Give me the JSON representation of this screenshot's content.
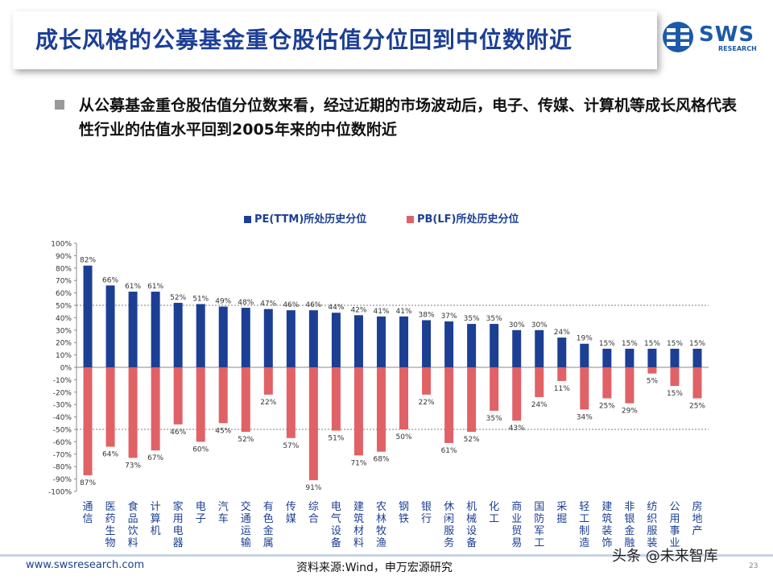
{
  "title": "成长风格的公募基金重仓股估值分位回到中位数附近",
  "logo": {
    "text": "SWS",
    "sub": "RESEARCH"
  },
  "bullet": "从公募基金重仓股估值分位数来看，经过近期的市场波动后，电子、传媒、计算机等成长风格代表性行业的估值水平回到2005年来的中位数附近",
  "footer": {
    "url": "www.swsresearch.com",
    "source": "资料来源:Wind，申万宏源研究",
    "watermark": "头条 @未来智库",
    "page": "23"
  },
  "colors": {
    "pe": "#1c3f94",
    "pb": "#e06266",
    "title": "#1c3f94"
  },
  "chart_data": {
    "type": "bar",
    "legend_position": "top",
    "categories": [
      "通信",
      "医药生物",
      "食品饮料",
      "计算机",
      "家用电器",
      "电子",
      "汽车",
      "交通运输",
      "有色金属",
      "传媒",
      "综合",
      "电气设备",
      "建筑材料",
      "农林牧渔",
      "钢铁",
      "银行",
      "休闲服务",
      "机械设备",
      "化工",
      "商业贸易",
      "国防军工",
      "采掘",
      "轻工制造",
      "建筑装饰",
      "非银金融",
      "纺织服装",
      "公用事业",
      "房地产"
    ],
    "series": [
      {
        "name": "PE(TTM)所处历史分位",
        "values": [
          82,
          66,
          61,
          61,
          52,
          51,
          49,
          48,
          47,
          46,
          46,
          44,
          42,
          41,
          41,
          38,
          37,
          35,
          35,
          30,
          30,
          24,
          19,
          15,
          15,
          15,
          15,
          15
        ]
      },
      {
        "name": "PB(LF)所处历史分位",
        "values": [
          -87,
          -64,
          -73,
          -67,
          -46,
          -60,
          -45,
          -52,
          -22,
          -57,
          -91,
          -51,
          -71,
          -68,
          -50,
          -22,
          -61,
          -52,
          -35,
          -43,
          -24,
          -11,
          -34,
          -25,
          -29,
          -5,
          -15,
          -25
        ]
      }
    ],
    "ylim": [
      -100,
      100
    ],
    "yticks": [
      -100,
      -90,
      -80,
      -70,
      -60,
      -50,
      -40,
      -30,
      -20,
      -10,
      0,
      10,
      20,
      30,
      40,
      50,
      60,
      70,
      80,
      90,
      100
    ],
    "reference_lines": [
      50,
      -50
    ]
  }
}
